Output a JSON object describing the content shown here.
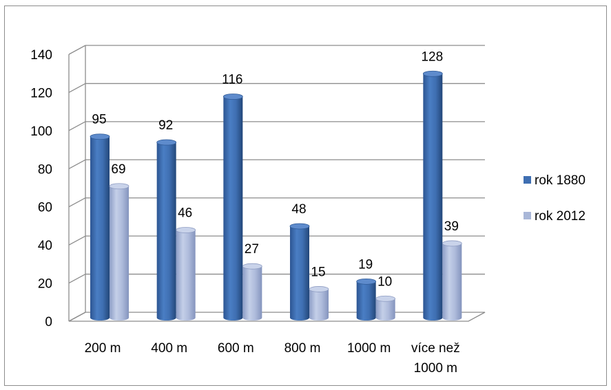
{
  "chart_data": {
    "type": "bar",
    "title": "",
    "xlabel": "",
    "ylabel": "",
    "categories": [
      [
        "200 m"
      ],
      [
        "400 m"
      ],
      [
        "600 m"
      ],
      [
        "800 m"
      ],
      [
        "1000 m"
      ],
      [
        "více než",
        "1000 m"
      ]
    ],
    "series": [
      {
        "name": "rok 1880",
        "values": [
          95,
          92,
          116,
          48,
          19,
          128
        ],
        "color": "#3f6fb2"
      },
      {
        "name": "rok 2012",
        "values": [
          69,
          46,
          27,
          15,
          10,
          39
        ],
        "color": "#a9b7d8"
      }
    ],
    "ylim": [
      0,
      140
    ],
    "yticks": [
      0,
      20,
      40,
      60,
      80,
      100,
      120,
      140
    ],
    "grid": true,
    "three_d": true,
    "legend_position": "right",
    "data_labels": true
  }
}
